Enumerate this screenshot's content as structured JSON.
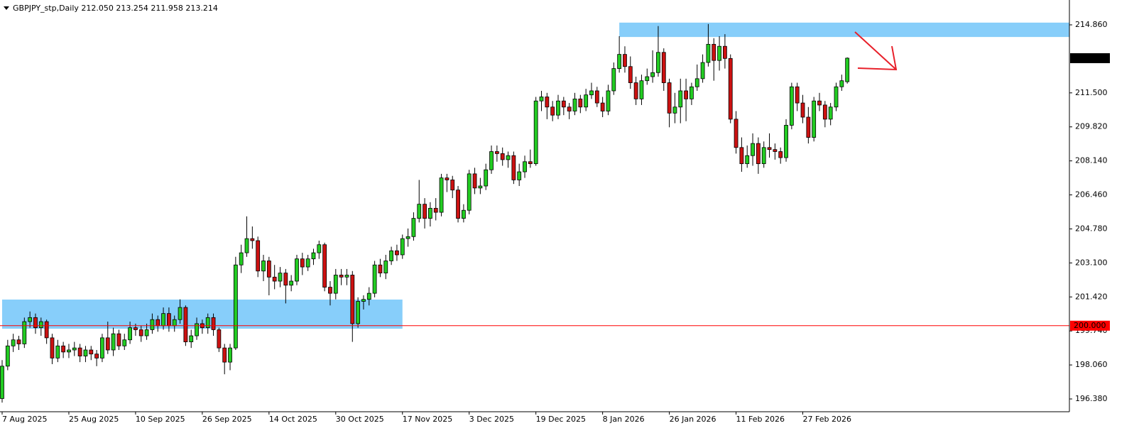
{
  "chart_data": {
    "type": "candlestick",
    "title": "GBPJPY_stp,Daily",
    "last_labels": [
      "212.050",
      "213.254",
      "211.958",
      "213.214"
    ],
    "up_color": "#22cc22",
    "down_color": "#cc1111",
    "zone_color": "#87cefa",
    "ylim": [
      195.749,
      216.087
    ],
    "yticks": [
      {
        "value": 214.86,
        "label": "214.860"
      },
      {
        "value": 211.5,
        "label": "211.500"
      },
      {
        "value": 209.82,
        "label": "209.820"
      },
      {
        "value": 208.14,
        "label": "208.140"
      },
      {
        "value": 206.46,
        "label": "206.460"
      },
      {
        "value": 204.78,
        "label": "204.780"
      },
      {
        "value": 203.1,
        "label": "203.100"
      },
      {
        "value": 201.42,
        "label": "201.420"
      },
      {
        "value": 199.74,
        "label": "199.740"
      },
      {
        "value": 198.06,
        "label": "198.060"
      },
      {
        "value": 196.38,
        "label": "196.380"
      }
    ],
    "hline": {
      "value": 200,
      "label": "200.000",
      "color": "#ff0000"
    },
    "zones": [
      {
        "from": 0,
        "to": 72,
        "ylim": [
          199.85,
          201.29
        ]
      },
      {
        "from": 111,
        "to": 192,
        "ylim": [
          214.26,
          214.97
        ]
      }
    ],
    "categories": [
      "7 Aug 2025",
      null,
      null,
      null,
      null,
      null,
      null,
      null,
      null,
      null,
      null,
      null,
      "25 Aug 2025",
      null,
      null,
      null,
      null,
      null,
      null,
      null,
      null,
      null,
      null,
      null,
      "10 Sep 2025",
      null,
      null,
      null,
      null,
      null,
      null,
      null,
      null,
      null,
      null,
      null,
      "26 Sep 2025",
      null,
      null,
      null,
      null,
      null,
      null,
      null,
      null,
      null,
      null,
      null,
      "14 Oct 2025",
      null,
      null,
      null,
      null,
      null,
      null,
      null,
      null,
      null,
      null,
      null,
      "30 Oct 2025",
      null,
      null,
      null,
      null,
      null,
      null,
      null,
      null,
      null,
      null,
      null,
      "17 Nov 2025",
      null,
      null,
      null,
      null,
      null,
      null,
      null,
      null,
      null,
      null,
      null,
      "3 Dec 2025",
      null,
      null,
      null,
      null,
      null,
      null,
      null,
      null,
      null,
      null,
      null,
      "19 Dec 2025",
      null,
      null,
      null,
      null,
      null,
      null,
      null,
      null,
      null,
      null,
      null,
      "8 Jan 2026",
      null,
      null,
      null,
      null,
      null,
      null,
      null,
      null,
      null,
      null,
      null,
      "26 Jan 2026",
      null,
      null,
      null,
      null,
      null,
      null,
      null,
      null,
      null,
      null,
      null,
      "11 Feb 2026",
      null,
      null,
      null,
      null,
      null,
      null,
      null,
      null,
      null,
      null,
      null,
      "27 Feb 2026",
      null,
      null,
      null,
      null,
      null,
      null,
      null,
      null
    ],
    "ohlc": [
      [
        196.4,
        198.3,
        196.2,
        198.0
      ],
      [
        198.0,
        199.3,
        197.8,
        199.0
      ],
      [
        199.0,
        199.6,
        198.7,
        199.3
      ],
      [
        199.3,
        199.5,
        198.8,
        199.1
      ],
      [
        199.1,
        200.4,
        198.9,
        200.2
      ],
      [
        200.2,
        200.7,
        199.9,
        200.4
      ],
      [
        200.4,
        200.6,
        199.6,
        199.9
      ],
      [
        199.9,
        200.4,
        199.5,
        200.2
      ],
      [
        200.2,
        200.3,
        199.1,
        199.4
      ],
      [
        199.4,
        199.6,
        198.1,
        198.4
      ],
      [
        198.4,
        199.3,
        198.2,
        199.0
      ],
      [
        199.0,
        199.2,
        198.4,
        198.7
      ],
      [
        198.7,
        199.1,
        198.4,
        198.8
      ],
      [
        198.8,
        199.2,
        198.5,
        198.9
      ],
      [
        198.9,
        199.1,
        198.2,
        198.5
      ],
      [
        198.5,
        199.0,
        198.2,
        198.8
      ],
      [
        198.8,
        199.0,
        198.3,
        198.6
      ],
      [
        198.6,
        198.8,
        198.0,
        198.4
      ],
      [
        198.4,
        199.6,
        198.2,
        199.4
      ],
      [
        199.4,
        200.2,
        198.6,
        198.8
      ],
      [
        198.8,
        199.9,
        198.5,
        199.6
      ],
      [
        199.6,
        199.8,
        198.8,
        199.0
      ],
      [
        199.0,
        199.6,
        198.8,
        199.3
      ],
      [
        199.3,
        200.2,
        199.1,
        199.9
      ],
      [
        199.9,
        200.1,
        199.5,
        199.8
      ],
      [
        199.8,
        200.0,
        199.2,
        199.5
      ],
      [
        199.5,
        200.1,
        199.3,
        199.8
      ],
      [
        199.8,
        200.6,
        199.6,
        200.3
      ],
      [
        200.3,
        200.5,
        199.7,
        200.0
      ],
      [
        200.0,
        200.9,
        199.8,
        200.6
      ],
      [
        200.6,
        200.9,
        199.7,
        200.0
      ],
      [
        200.0,
        200.5,
        199.7,
        200.3
      ],
      [
        200.3,
        201.3,
        200.1,
        200.9
      ],
      [
        200.9,
        201.0,
        199.0,
        199.2
      ],
      [
        199.2,
        199.8,
        198.9,
        199.5
      ],
      [
        199.5,
        200.4,
        199.3,
        200.1
      ],
      [
        200.1,
        200.3,
        199.6,
        199.9
      ],
      [
        199.9,
        200.6,
        199.6,
        200.4
      ],
      [
        200.4,
        200.6,
        199.5,
        199.8
      ],
      [
        199.8,
        199.9,
        198.7,
        198.9
      ],
      [
        198.9,
        199.1,
        197.6,
        198.2
      ],
      [
        198.2,
        199.1,
        197.8,
        198.9
      ],
      [
        198.9,
        203.4,
        198.8,
        203.0
      ],
      [
        203.0,
        204.0,
        202.6,
        203.6
      ],
      [
        203.6,
        205.4,
        203.4,
        204.3
      ],
      [
        204.3,
        204.9,
        203.8,
        204.2
      ],
      [
        204.2,
        204.4,
        202.4,
        202.7
      ],
      [
        202.7,
        203.5,
        202.2,
        203.2
      ],
      [
        203.2,
        203.4,
        201.5,
        202.4
      ],
      [
        202.4,
        203.0,
        201.8,
        202.2
      ],
      [
        202.2,
        202.9,
        201.9,
        202.6
      ],
      [
        202.6,
        202.8,
        201.1,
        202.0
      ],
      [
        202.0,
        202.5,
        201.7,
        202.2
      ],
      [
        202.2,
        203.5,
        202.0,
        203.3
      ],
      [
        203.3,
        203.6,
        202.5,
        202.9
      ],
      [
        202.9,
        203.5,
        202.7,
        203.3
      ],
      [
        203.3,
        203.8,
        203.0,
        203.6
      ],
      [
        203.6,
        204.2,
        203.3,
        204.0
      ],
      [
        204.0,
        204.1,
        201.7,
        201.9
      ],
      [
        201.9,
        202.2,
        201.0,
        201.6
      ],
      [
        201.6,
        202.8,
        201.3,
        202.5
      ],
      [
        202.5,
        202.8,
        202.0,
        202.4
      ],
      [
        202.4,
        202.8,
        202.0,
        202.5
      ],
      [
        202.5,
        202.7,
        199.2,
        200.1
      ],
      [
        200.1,
        201.4,
        199.9,
        201.2
      ],
      [
        201.2,
        201.5,
        200.8,
        201.3
      ],
      [
        201.3,
        201.9,
        201.0,
        201.6
      ],
      [
        201.6,
        203.2,
        201.4,
        203.0
      ],
      [
        203.0,
        203.3,
        202.4,
        202.6
      ],
      [
        202.6,
        203.5,
        202.3,
        203.2
      ],
      [
        203.2,
        203.9,
        203.0,
        203.7
      ],
      [
        203.7,
        204.0,
        203.2,
        203.5
      ],
      [
        203.5,
        204.5,
        203.3,
        204.3
      ],
      [
        204.3,
        204.8,
        203.9,
        204.4
      ],
      [
        204.4,
        205.6,
        204.2,
        205.3
      ],
      [
        205.3,
        207.2,
        205.1,
        206.0
      ],
      [
        206.0,
        206.3,
        204.8,
        205.3
      ],
      [
        205.3,
        206.1,
        204.9,
        205.8
      ],
      [
        205.8,
        206.3,
        205.2,
        205.6
      ],
      [
        205.6,
        207.5,
        205.4,
        207.3
      ],
      [
        207.3,
        207.5,
        206.6,
        207.2
      ],
      [
        207.2,
        207.4,
        206.3,
        206.7
      ],
      [
        206.7,
        206.9,
        205.1,
        205.3
      ],
      [
        205.3,
        206.0,
        205.1,
        205.7
      ],
      [
        205.7,
        207.7,
        205.5,
        207.5
      ],
      [
        207.5,
        207.8,
        206.5,
        206.8
      ],
      [
        206.8,
        207.3,
        206.5,
        206.9
      ],
      [
        206.9,
        208.0,
        206.7,
        207.7
      ],
      [
        207.7,
        208.9,
        207.5,
        208.6
      ],
      [
        208.6,
        208.9,
        208.1,
        208.5
      ],
      [
        208.5,
        208.8,
        207.9,
        208.2
      ],
      [
        208.2,
        208.6,
        207.8,
        208.4
      ],
      [
        208.4,
        208.6,
        207.0,
        207.2
      ],
      [
        207.2,
        208.0,
        206.9,
        207.6
      ],
      [
        207.6,
        208.4,
        207.3,
        208.1
      ],
      [
        208.1,
        208.7,
        207.8,
        208.0
      ],
      [
        208.0,
        211.3,
        207.9,
        211.1
      ],
      [
        211.1,
        211.6,
        210.6,
        211.3
      ],
      [
        211.3,
        211.5,
        210.2,
        210.8
      ],
      [
        210.8,
        211.1,
        210.1,
        210.4
      ],
      [
        210.4,
        211.4,
        210.2,
        211.1
      ],
      [
        211.1,
        211.3,
        210.4,
        210.8
      ],
      [
        210.8,
        211.0,
        210.2,
        210.6
      ],
      [
        210.6,
        211.5,
        210.4,
        211.2
      ],
      [
        211.2,
        211.4,
        210.5,
        210.8
      ],
      [
        210.8,
        211.7,
        210.6,
        211.4
      ],
      [
        211.4,
        212.0,
        211.2,
        211.6
      ],
      [
        211.6,
        211.8,
        210.8,
        211.0
      ],
      [
        211.0,
        211.3,
        210.3,
        210.6
      ],
      [
        210.6,
        211.9,
        210.4,
        211.6
      ],
      [
        211.6,
        213.0,
        211.4,
        212.7
      ],
      [
        212.7,
        214.3,
        212.5,
        213.4
      ],
      [
        213.4,
        213.8,
        212.5,
        212.8
      ],
      [
        212.8,
        213.3,
        211.7,
        212.0
      ],
      [
        212.0,
        212.3,
        210.9,
        211.2
      ],
      [
        211.2,
        212.4,
        210.9,
        212.1
      ],
      [
        212.1,
        212.7,
        211.9,
        212.3
      ],
      [
        212.3,
        213.6,
        212.0,
        212.5
      ],
      [
        212.5,
        214.8,
        212.3,
        213.5
      ],
      [
        213.5,
        213.7,
        211.6,
        212.0
      ],
      [
        212.0,
        212.2,
        209.8,
        210.5
      ],
      [
        210.5,
        211.5,
        210.0,
        210.8
      ],
      [
        210.8,
        212.2,
        210.0,
        211.6
      ],
      [
        211.6,
        212.2,
        210.1,
        211.2
      ],
      [
        211.2,
        212.0,
        210.9,
        211.8
      ],
      [
        211.8,
        212.9,
        211.6,
        212.2
      ],
      [
        212.2,
        213.4,
        212.0,
        213.0
      ],
      [
        213.0,
        214.9,
        212.8,
        213.9
      ],
      [
        213.9,
        214.2,
        212.1,
        213.1
      ],
      [
        213.1,
        214.3,
        212.6,
        213.8
      ],
      [
        213.8,
        214.4,
        212.7,
        213.2
      ],
      [
        213.2,
        213.4,
        210.0,
        210.2
      ],
      [
        210.2,
        210.6,
        208.5,
        208.8
      ],
      [
        208.8,
        209.3,
        207.6,
        208.0
      ],
      [
        208.0,
        208.9,
        207.8,
        208.4
      ],
      [
        208.4,
        209.5,
        207.9,
        209.0
      ],
      [
        209.0,
        209.3,
        207.5,
        208.0
      ],
      [
        208.0,
        209.1,
        207.8,
        208.8
      ],
      [
        208.8,
        209.5,
        208.3,
        208.7
      ],
      [
        208.7,
        209.0,
        208.2,
        208.6
      ],
      [
        208.6,
        208.8,
        208.0,
        208.3
      ],
      [
        208.3,
        210.2,
        208.1,
        209.9
      ],
      [
        209.9,
        212.0,
        209.7,
        211.8
      ],
      [
        211.8,
        212.0,
        210.6,
        211.0
      ],
      [
        211.0,
        211.4,
        210.0,
        210.3
      ],
      [
        210.3,
        210.8,
        209.0,
        209.3
      ],
      [
        209.3,
        211.3,
        209.1,
        211.1
      ],
      [
        211.1,
        211.5,
        210.6,
        210.9
      ],
      [
        210.9,
        211.1,
        209.8,
        210.2
      ],
      [
        210.2,
        211.0,
        209.9,
        210.8
      ],
      [
        210.8,
        212.0,
        210.6,
        211.8
      ],
      [
        211.8,
        212.4,
        211.6,
        212.1
      ],
      [
        212.05,
        213.254,
        211.958,
        213.214
      ]
    ]
  }
}
